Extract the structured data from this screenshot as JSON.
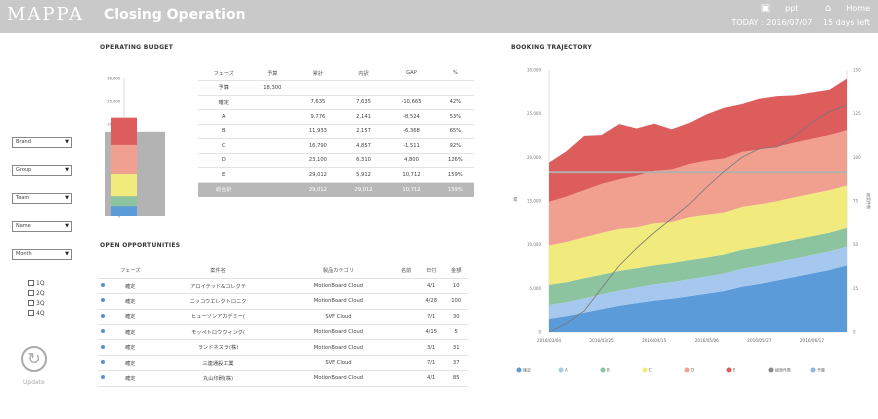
{
  "header": {
    "logo": "MAPPA",
    "title": "Closing Operation",
    "ppt_label": "ppt",
    "home_label": "Home",
    "today_label": "TODAY : 2016/07/07",
    "days_left": "15 days left"
  },
  "sidebar": {
    "selects": [
      "Brand",
      "Group",
      "Team",
      "Name",
      "Month"
    ],
    "quarters": [
      "1Q",
      "2Q",
      "3Q",
      "4Q"
    ],
    "update_label": "Update"
  },
  "budget": {
    "title": "OPERATING BUDGET",
    "chart_data": {
      "type": "bar",
      "categories": [
        "Budget"
      ],
      "ylim": [
        0,
        30000
      ],
      "ticks": [
        "30,000",
        "25,000",
        "20,000",
        "15,000",
        "10,000",
        "5,000",
        "0"
      ],
      "budget_value": 18300,
      "segments": [
        {
          "name": "A",
          "value": 2141,
          "color": "#5b9bd9"
        },
        {
          "name": "B",
          "value": 2157,
          "color": "#8dc4a0"
        },
        {
          "name": "C",
          "value": 4857,
          "color": "#f1ea7c"
        },
        {
          "name": "D",
          "value": 6310,
          "color": "#f1a090"
        },
        {
          "name": "E",
          "value": 5912,
          "color": "#dd5d5d"
        }
      ]
    },
    "table": {
      "headers": [
        "フェーズ",
        "予算",
        "累計",
        "内訳",
        "GAP",
        "%"
      ],
      "rows": [
        [
          "予算",
          "18,300",
          "",
          "",
          "",
          ""
        ],
        [
          "確定",
          "",
          "7,635",
          "7,635",
          "-10,665",
          "42%"
        ],
        [
          "A",
          "",
          "9,776",
          "2,141",
          "-8,524",
          "53%"
        ],
        [
          "B",
          "",
          "11,933",
          "2,157",
          "-6,368",
          "65%"
        ],
        [
          "C",
          "",
          "16,790",
          "4,857",
          "-1,511",
          "92%"
        ],
        [
          "D",
          "",
          "23,100",
          "6,310",
          "4,800",
          "126%"
        ],
        [
          "E",
          "",
          "29,012",
          "5,912",
          "10,712",
          "159%"
        ]
      ],
      "total": [
        "総合計",
        "",
        "29,012",
        "29,012",
        "10,712",
        "159%"
      ]
    }
  },
  "opportunities": {
    "title": "OPEN OPPORTUNITIES",
    "headers": [
      "",
      "フェーズ",
      "案件名",
      "製品カテゴリ",
      "名前",
      "日付",
      "金額"
    ],
    "rows": [
      [
        "確定",
        "アロイテッド&コレクテ",
        "MotionBoard Cloud",
        "",
        "4/1",
        "10"
      ],
      [
        "確定",
        "ニッコウエレクトロニク",
        "MotionBoard Cloud",
        "",
        "4/28",
        "100"
      ],
      [
        "確定",
        "ヒューソンアカデミー(",
        "SVF Cloud",
        "",
        "7/1",
        "30"
      ],
      [
        "確定",
        "モッペトロウウィング(",
        "MotionBoard Cloud",
        "",
        "4/15",
        "5"
      ],
      [
        "確定",
        "ランドネスラ(株)",
        "MotionBoard Cloud",
        "",
        "3/1",
        "31"
      ],
      [
        "確定",
        "三連通設工業",
        "SVF Cloud",
        "",
        "7/1",
        "37"
      ],
      [
        "確定",
        "丸山印刷(株)",
        "MotionBoard Cloud",
        "",
        "4/1",
        "85"
      ]
    ]
  },
  "trajectory": {
    "title": "BOOKING TRAJECTORY",
    "chart_data": {
      "type": "area",
      "x": [
        "2016/03/04",
        "2016/03/11",
        "2016/03/18",
        "2016/03/25",
        "2016/04/01",
        "2016/04/08",
        "2016/04/15",
        "2016/04/22",
        "2016/04/29",
        "2016/05/06",
        "2016/05/13",
        "2016/05/20",
        "2016/05/27",
        "2016/06/03",
        "2016/06/10",
        "2016/06/17",
        "2016/06/24",
        "2016/07/01"
      ],
      "x_ticks": [
        "2016/03/04",
        "2016/03/25",
        "2016/04/15",
        "2016/05/06",
        "2016/05/27",
        "2016/06/17"
      ],
      "ylim": [
        0,
        30000
      ],
      "y_ticks": [
        "0",
        "5,000",
        "10,000",
        "15,000",
        "20,000",
        "25,000",
        "30,000"
      ],
      "ylabel": "累",
      "y2lim": [
        0,
        150
      ],
      "y2_ticks": [
        "0",
        "25",
        "50",
        "75",
        "100",
        "125",
        "150"
      ],
      "y2label": "総案件数",
      "budget_line": 18300,
      "series": [
        {
          "name": "確定",
          "color": "#5b9bd9",
          "values": [
            1500,
            1800,
            2200,
            2600,
            3000,
            3300,
            3600,
            3800,
            4100,
            4400,
            4700,
            5200,
            5500,
            5900,
            6300,
            6700,
            7100,
            7635
          ]
        },
        {
          "name": "A",
          "color": "#a7c8ee",
          "values": [
            1600,
            1600,
            1650,
            1700,
            1750,
            1800,
            1850,
            1900,
            1950,
            1950,
            2000,
            2050,
            2100,
            2100,
            2100,
            2120,
            2130,
            2141
          ]
        },
        {
          "name": "B",
          "color": "#8dc4a0",
          "values": [
            2300,
            2300,
            2300,
            2250,
            2250,
            2200,
            2200,
            2200,
            2180,
            2180,
            2170,
            2160,
            2160,
            2160,
            2157,
            2157,
            2157,
            2157
          ]
        },
        {
          "name": "C",
          "color": "#f1ea7c",
          "values": [
            4500,
            4600,
            4700,
            4800,
            4800,
            4700,
            4800,
            4700,
            4900,
            4900,
            4800,
            4900,
            4850,
            4800,
            4850,
            4850,
            4860,
            4857
          ]
        },
        {
          "name": "D",
          "color": "#f1a090",
          "values": [
            5000,
            5200,
            5400,
            5600,
            5700,
            5900,
            6000,
            6000,
            6100,
            6200,
            6200,
            6300,
            6300,
            6250,
            6280,
            6300,
            6300,
            6310
          ]
        },
        {
          "name": "E",
          "color": "#dd5d5d",
          "values": [
            4500,
            5200,
            6200,
            5600,
            6300,
            5400,
            5400,
            4600,
            4700,
            5300,
            5800,
            5500,
            5800,
            5800,
            5400,
            5300,
            5200,
            5912
          ]
        }
      ],
      "count_series": {
        "name": "総案件数",
        "values": [
          0,
          5,
          12,
          25,
          38,
          48,
          57,
          65,
          73,
          83,
          92,
          100,
          105,
          106,
          112,
          120,
          126,
          130
        ]
      },
      "legend": [
        "確定",
        "A",
        "B",
        "C",
        "D",
        "E",
        "総案件数",
        "予算"
      ],
      "legend_colors": [
        "#5b9bd9",
        "#a7c8ee",
        "#8dc4a0",
        "#f1ea7c",
        "#f1a090",
        "#dd5d5d",
        "#888888",
        "#8ab8ea"
      ]
    }
  }
}
